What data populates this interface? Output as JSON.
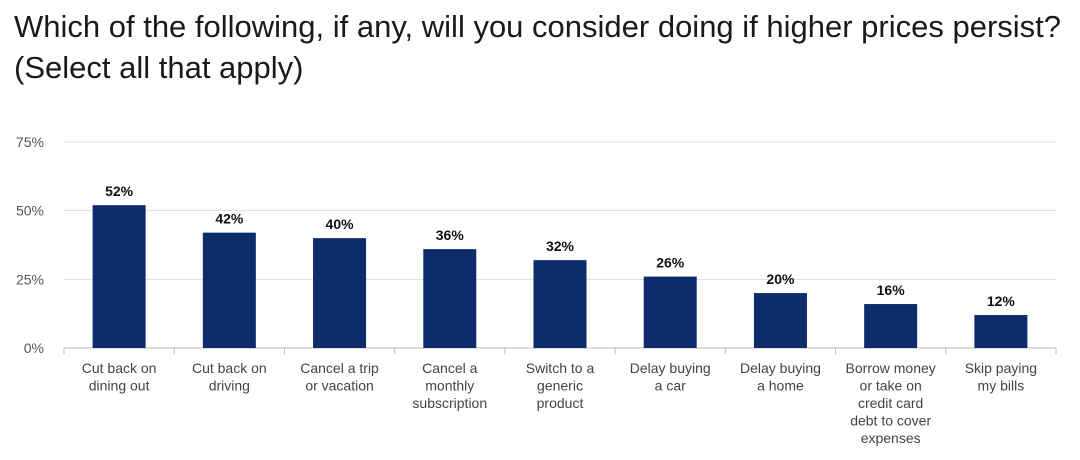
{
  "title": "Which of the following, if any, will you consider doing if higher prices persist? (Select all that apply)",
  "colors": {
    "bar": "#0b2d6b",
    "grid": "#dddddd",
    "axis": "#bbbbbb"
  },
  "chart_data": {
    "type": "bar",
    "title": "Which of the following, if any, will you consider doing if higher prices persist? (Select all that apply)",
    "categories": [
      [
        "Cut back on",
        "dining out"
      ],
      [
        "Cut back on",
        "driving"
      ],
      [
        "Cancel a trip",
        "or vacation"
      ],
      [
        "Cancel a",
        "monthly",
        "subscription"
      ],
      [
        "Switch to a",
        "generic",
        "product"
      ],
      [
        "Delay buying",
        "a car"
      ],
      [
        "Delay buying",
        "a home"
      ],
      [
        "Borrow money",
        "or take on",
        "credit card",
        "debt to cover",
        "expenses"
      ],
      [
        "Skip paying",
        "my bills"
      ]
    ],
    "values": [
      52,
      42,
      40,
      36,
      32,
      26,
      20,
      16,
      12
    ],
    "value_labels": [
      "52%",
      "42%",
      "40%",
      "36%",
      "32%",
      "26%",
      "20%",
      "16%",
      "12%"
    ],
    "ylim": [
      0,
      75
    ],
    "yticks": [
      0,
      25,
      50,
      75
    ],
    "ytick_labels": [
      "0%",
      "25%",
      "50%",
      "75%"
    ],
    "grid": true,
    "legend": "none"
  }
}
